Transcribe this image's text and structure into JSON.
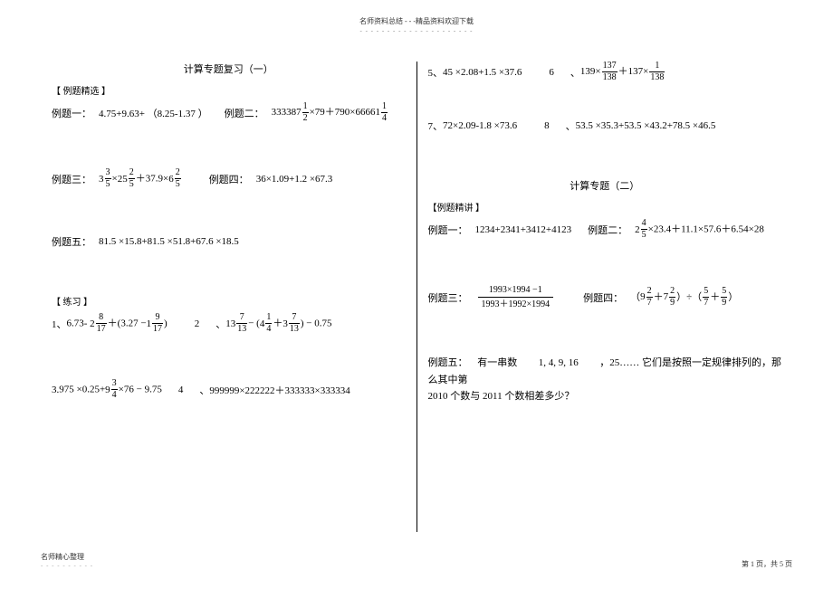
{
  "header": {
    "top_text": "名师资料总结 - - -精品资料欢迎下载"
  },
  "left": {
    "title": "计算专题复习（一）",
    "section_label": "【 例题精选 】",
    "ex1_label": "例题一：",
    "ex1_expr": "4.75+9.63+ （8.25-1.37 ）",
    "ex2_label": "例题二：",
    "ex2_a": "333387",
    "ex2_a_n": "1",
    "ex2_a_d": "2",
    "ex2_mid": "×79＋790×",
    "ex2_b": "66661",
    "ex2_b_n": "1",
    "ex2_b_d": "4",
    "ex3_label": "例题三：",
    "ex3_p1_w": "3",
    "ex3_p1_n": "3",
    "ex3_p1_d": "5",
    "ex3_x1": "×",
    "ex3_p2_w": "25",
    "ex3_p2_n": "2",
    "ex3_p2_d": "5",
    "ex3_plus": "＋37.9×",
    "ex3_p3_w": "6",
    "ex3_p3_n": "2",
    "ex3_p3_d": "5",
    "ex4_label": "例题四：",
    "ex4_expr": "36×1.09+1.2 ×67.3",
    "ex5_label": "例题五：",
    "ex5_expr": "81.5 ×15.8+81.5 ×51.8+67.6 ×18.5",
    "practice_label": "【 练习 】",
    "p1_label": "1、",
    "p1_a": "6.73-",
    "p1_m1_w": "2",
    "p1_m1_n": "8",
    "p1_m1_d": "17",
    "p1_mid": "＋(3.27 −",
    "p1_m2_w": "1",
    "p1_m2_n": "9",
    "p1_m2_d": "17",
    "p1_end": ")",
    "p2_num": "2",
    "p2_sep": "、",
    "p2_a_w": "13",
    "p2_a_n": "7",
    "p2_a_d": "13",
    "p2_m": "− (",
    "p2_b_w": "4",
    "p2_b_n": "1",
    "p2_b_d": "4",
    "p2_p": "＋",
    "p2_c_w": "3",
    "p2_c_n": "7",
    "p2_c_d": "13",
    "p2_end": ") − 0.75",
    "p3_label": "3.",
    "p3_a": "975 ×0.25+",
    "p3_m_w": "9",
    "p3_m_n": "3",
    "p3_m_d": "4",
    "p3_b": "×76 − 9.75",
    "p4_num": "4",
    "p4_sep": "、",
    "p4_expr": "999999×222222＋333333×333334"
  },
  "right": {
    "r5_label": "5、",
    "r5_a": "45 ×2.08+1.5 ×37.6",
    "r6_num": "6",
    "r6_sep": "、",
    "r6_a": "139×",
    "r6_f1_n": "137",
    "r6_f1_d": "138",
    "r6_mid": "＋137×",
    "r6_f2_n": "1",
    "r6_f2_d": "138",
    "r7_label": "7、",
    "r7_a": "72×2.09-1.8 ×73.6",
    "r8_num": "8",
    "r8_sep": "、",
    "r8_expr": "53.5 ×35.3+53.5 ×43.2+78.5 ×46.5",
    "title2": "计算专题（二）",
    "sect2": "【例题精讲 】",
    "e1_label": "例题一：",
    "e1_expr": "1234+2341+3412+4123",
    "e2_label": "例题二：",
    "e2_m_w": "2",
    "e2_m_n": "4",
    "e2_m_d": "5",
    "e2_a": "×23.4＋11.1×57.6＋6.54×28",
    "e3_label": "例题三：",
    "e3_num": "1993×1994 −1",
    "e3_den": "1993＋1992×1994",
    "e4_label": "例题四：",
    "e4_a": "（",
    "e4_m1_w": "9",
    "e4_m1_n": "2",
    "e4_m1_d": "7",
    "e4_p": "＋",
    "e4_m2_w": "7",
    "e4_m2_n": "2",
    "e4_m2_d": "9",
    "e4_b": "）÷（",
    "e4_f3_n": "5",
    "e4_f3_d": "7",
    "e4_p2": "＋",
    "e4_f4_n": "5",
    "e4_f4_d": "9",
    "e4_c": "）",
    "e5_label": "例题五：",
    "e5_text1": "有一串数",
    "e5_text2": "1, 4, 9, 16",
    "e5_text3": "，25…… 它们是按照一定规律排列的，那么其中第",
    "e5_text4": "2010 个数与 2011 个数相差多少？"
  },
  "footer": {
    "left": "名师精心整理",
    "right": "第 1 页，共 5 页"
  }
}
